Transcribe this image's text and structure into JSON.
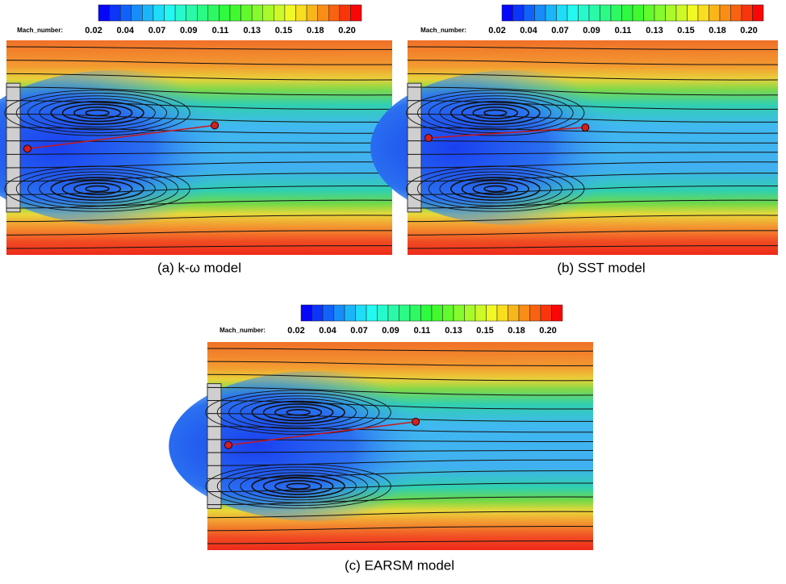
{
  "panels": [
    {
      "colorbar": {
        "label": "Mach_number:",
        "ticks": [
          "0.02",
          "0.04",
          "0.07",
          "0.09",
          "0.11",
          "0.13",
          "0.15",
          "0.18",
          "0.20"
        ]
      },
      "caption": "(a) k-ω model"
    },
    {
      "colorbar": {
        "label": "Mach_number:",
        "ticks": [
          "0.02",
          "0.04",
          "0.07",
          "0.09",
          "0.11",
          "0.13",
          "0.15",
          "0.18",
          "0.20"
        ]
      },
      "caption": "(b) SST model"
    },
    {
      "colorbar": {
        "label": "Mach_number:",
        "ticks": [
          "0.02",
          "0.04",
          "0.07",
          "0.09",
          "0.11",
          "0.13",
          "0.15",
          "0.18",
          "0.20"
        ]
      },
      "caption": "(c) EARSM model"
    }
  ]
}
